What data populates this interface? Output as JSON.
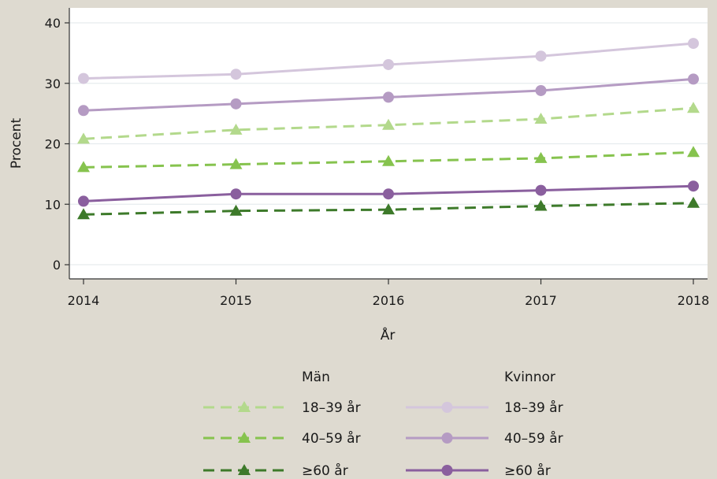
{
  "chart_data": {
    "type": "line",
    "xlabel": "År",
    "ylabel": "Procent",
    "x": [
      2014,
      2015,
      2016,
      2017,
      2018
    ],
    "xlim": [
      2014,
      2018
    ],
    "ylim": [
      0,
      40
    ],
    "yticks": [
      0,
      10,
      20,
      30,
      40
    ],
    "grid": true,
    "legend_position": "bottom",
    "legend_groups": [
      "Män",
      "Kvinnor"
    ],
    "series": [
      {
        "name": "18–39 år",
        "group": "Män",
        "values": [
          20.8,
          22.3,
          23.1,
          24.1,
          25.9
        ],
        "color": "#b3d98c",
        "dash": true,
        "marker": "triangle"
      },
      {
        "name": "40–59 år",
        "group": "Män",
        "values": [
          16.1,
          16.6,
          17.1,
          17.6,
          18.6
        ],
        "color": "#86c34e",
        "dash": true,
        "marker": "triangle"
      },
      {
        "name": "≥60 år",
        "group": "Män",
        "values": [
          8.3,
          8.9,
          9.1,
          9.7,
          10.2
        ],
        "color": "#3d7a2a",
        "dash": true,
        "marker": "triangle"
      },
      {
        "name": "18–39 år",
        "group": "Kvinnor",
        "values": [
          30.8,
          31.5,
          33.1,
          34.5,
          36.6
        ],
        "color": "#d4c6dc",
        "dash": false,
        "marker": "circle"
      },
      {
        "name": "40–59 år",
        "group": "Kvinnor",
        "values": [
          25.5,
          26.6,
          27.7,
          28.8,
          30.7
        ],
        "color": "#b59bc3",
        "dash": false,
        "marker": "circle"
      },
      {
        "name": "≥60 år",
        "group": "Kvinnor",
        "values": [
          10.5,
          11.7,
          11.7,
          12.3,
          13.0
        ],
        "color": "#8a5f9e",
        "dash": false,
        "marker": "circle"
      }
    ]
  }
}
